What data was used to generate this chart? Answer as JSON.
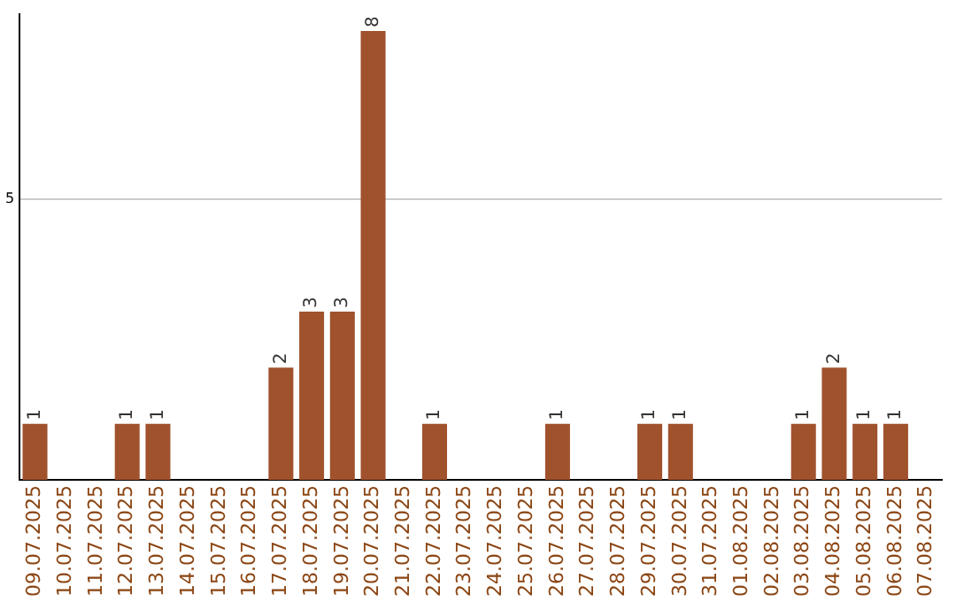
{
  "chart_data": {
    "type": "bar",
    "categories": [
      "09.07.2025",
      "10.07.2025",
      "11.07.2025",
      "12.07.2025",
      "13.07.2025",
      "14.07.2025",
      "15.07.2025",
      "16.07.2025",
      "17.07.2025",
      "18.07.2025",
      "19.07.2025",
      "20.07.2025",
      "21.07.2025",
      "22.07.2025",
      "23.07.2025",
      "24.07.2025",
      "25.07.2025",
      "26.07.2025",
      "27.07.2025",
      "28.07.2025",
      "29.07.2025",
      "30.07.2025",
      "31.07.2025",
      "01.08.2025",
      "02.08.2025",
      "03.08.2025",
      "04.08.2025",
      "05.08.2025",
      "06.08.2025",
      "07.08.2025"
    ],
    "values": [
      1,
      0,
      0,
      1,
      1,
      0,
      0,
      0,
      2,
      3,
      3,
      8,
      0,
      1,
      0,
      0,
      0,
      1,
      0,
      0,
      1,
      1,
      0,
      0,
      0,
      1,
      2,
      1,
      1,
      0
    ],
    "value_labels": [
      "1",
      null,
      null,
      "1",
      "1",
      null,
      null,
      null,
      "2",
      "3",
      "3",
      "8",
      null,
      "1",
      null,
      null,
      null,
      "1",
      null,
      null,
      "1",
      "1",
      null,
      null,
      null,
      "1",
      "2",
      "1",
      "1",
      null
    ],
    "color": "#a0522d",
    "ylim": [
      0,
      8.3
    ],
    "yticks": [
      5
    ],
    "grid": "y",
    "legend": false
  }
}
